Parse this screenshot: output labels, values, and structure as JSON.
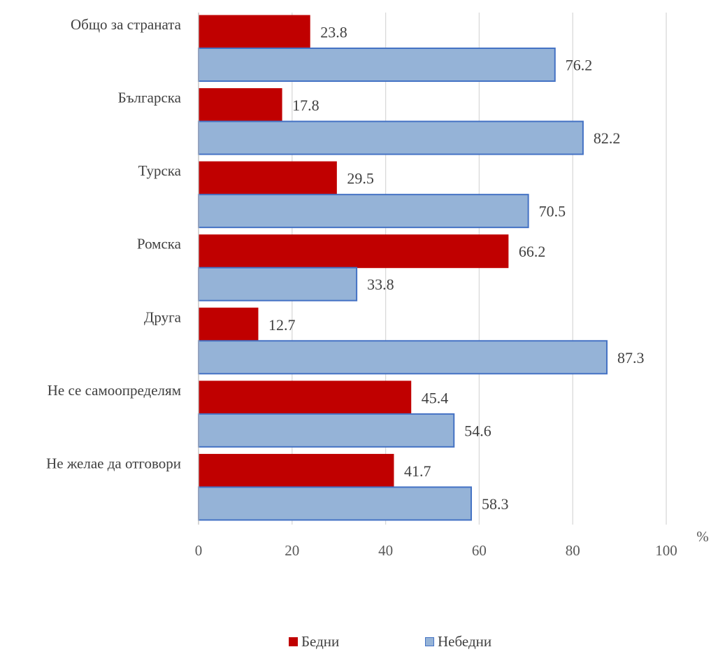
{
  "chart_data": {
    "type": "bar",
    "orientation": "horizontal",
    "categories": [
      "Общо за страната",
      "Българска",
      "Турска",
      "Ромска",
      "Друга",
      "Не се самоопределям",
      "Не желае да отговори"
    ],
    "series": [
      {
        "name": "Бедни",
        "values": [
          23.8,
          17.8,
          29.5,
          66.2,
          12.7,
          45.4,
          41.7
        ],
        "color": "#C00000",
        "border": "#C00000"
      },
      {
        "name": "Небедни",
        "values": [
          76.2,
          82.2,
          70.5,
          33.8,
          87.3,
          54.6,
          58.3
        ],
        "color": "#95B3D7",
        "border": "#4472C4"
      }
    ],
    "xticks": [
      "0",
      "20",
      "40",
      "60",
      "80",
      "100"
    ],
    "xlim": [
      0,
      100
    ],
    "unit_label": "%",
    "grid": true,
    "legend_position": "bottom"
  }
}
